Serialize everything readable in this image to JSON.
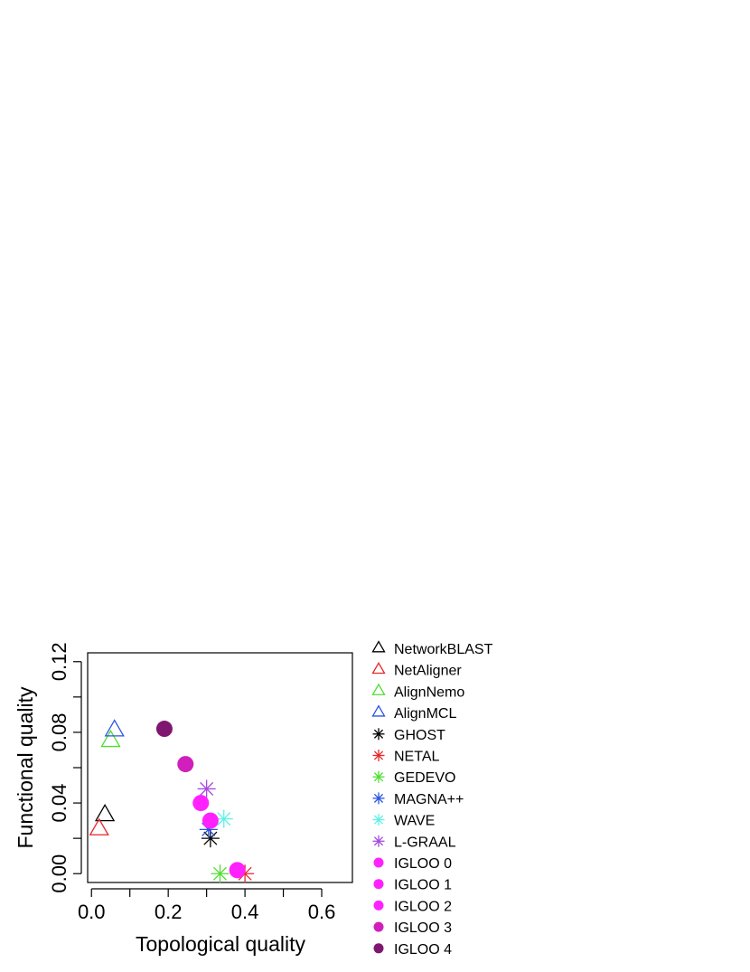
{
  "chart_data": {
    "type": "scatter",
    "xlabel": "Topological quality",
    "ylabel": "Functional quality",
    "xlim": [
      -0.01,
      0.68
    ],
    "ylim": [
      -0.005,
      0.125
    ],
    "x_ticks": [
      0.0,
      0.1,
      0.2,
      0.3,
      0.4,
      0.5,
      0.6
    ],
    "x_tick_labels": [
      "0.0",
      "",
      "0.2",
      "",
      "0.4",
      "",
      "0.6"
    ],
    "y_ticks": [
      0.0,
      0.02,
      0.04,
      0.06,
      0.08,
      0.1,
      0.12
    ],
    "y_tick_labels": [
      "0.00",
      "",
      "0.04",
      "",
      "0.08",
      "",
      "0.12"
    ],
    "legend_position": "right",
    "series": [
      {
        "name": "NetworkBLAST",
        "marker": "triangle",
        "color": "#000000",
        "x": 0.035,
        "y": 0.033
      },
      {
        "name": "NetAligner",
        "marker": "triangle",
        "color": "#e8262a",
        "x": 0.02,
        "y": 0.025
      },
      {
        "name": "AlignNemo",
        "marker": "triangle",
        "color": "#4ede2e",
        "x": 0.05,
        "y": 0.075
      },
      {
        "name": "AlignMCL",
        "marker": "triangle",
        "color": "#2a55e0",
        "x": 0.06,
        "y": 0.081
      },
      {
        "name": "GHOST",
        "marker": "asterisk",
        "color": "#000000",
        "x": 0.31,
        "y": 0.02
      },
      {
        "name": "NETAL",
        "marker": "asterisk",
        "color": "#e8262a",
        "x": 0.4,
        "y": 0.0
      },
      {
        "name": "GEDEVO",
        "marker": "asterisk",
        "color": "#4ede2e",
        "x": 0.335,
        "y": 0.0
      },
      {
        "name": "MAGNA++",
        "marker": "asterisk",
        "color": "#2a55e0",
        "x": 0.305,
        "y": 0.025
      },
      {
        "name": "WAVE",
        "marker": "asterisk",
        "color": "#5ef2e6",
        "x": 0.345,
        "y": 0.031
      },
      {
        "name": "L-GRAAL",
        "marker": "asterisk",
        "color": "#a64ae0",
        "x": 0.3,
        "y": 0.048
      },
      {
        "name": "IGLOO 0",
        "marker": "circle",
        "color": "#ff22ff",
        "x": 0.38,
        "y": 0.002
      },
      {
        "name": "IGLOO 1",
        "marker": "circle",
        "color": "#ff22ff",
        "x": 0.31,
        "y": 0.03
      },
      {
        "name": "IGLOO 2",
        "marker": "circle",
        "color": "#ff22ff",
        "x": 0.285,
        "y": 0.04
      },
      {
        "name": "IGLOO 3",
        "marker": "circle",
        "color": "#d01fbc",
        "x": 0.245,
        "y": 0.062
      },
      {
        "name": "IGLOO 4",
        "marker": "circle",
        "color": "#7f1770",
        "x": 0.19,
        "y": 0.082
      }
    ]
  }
}
